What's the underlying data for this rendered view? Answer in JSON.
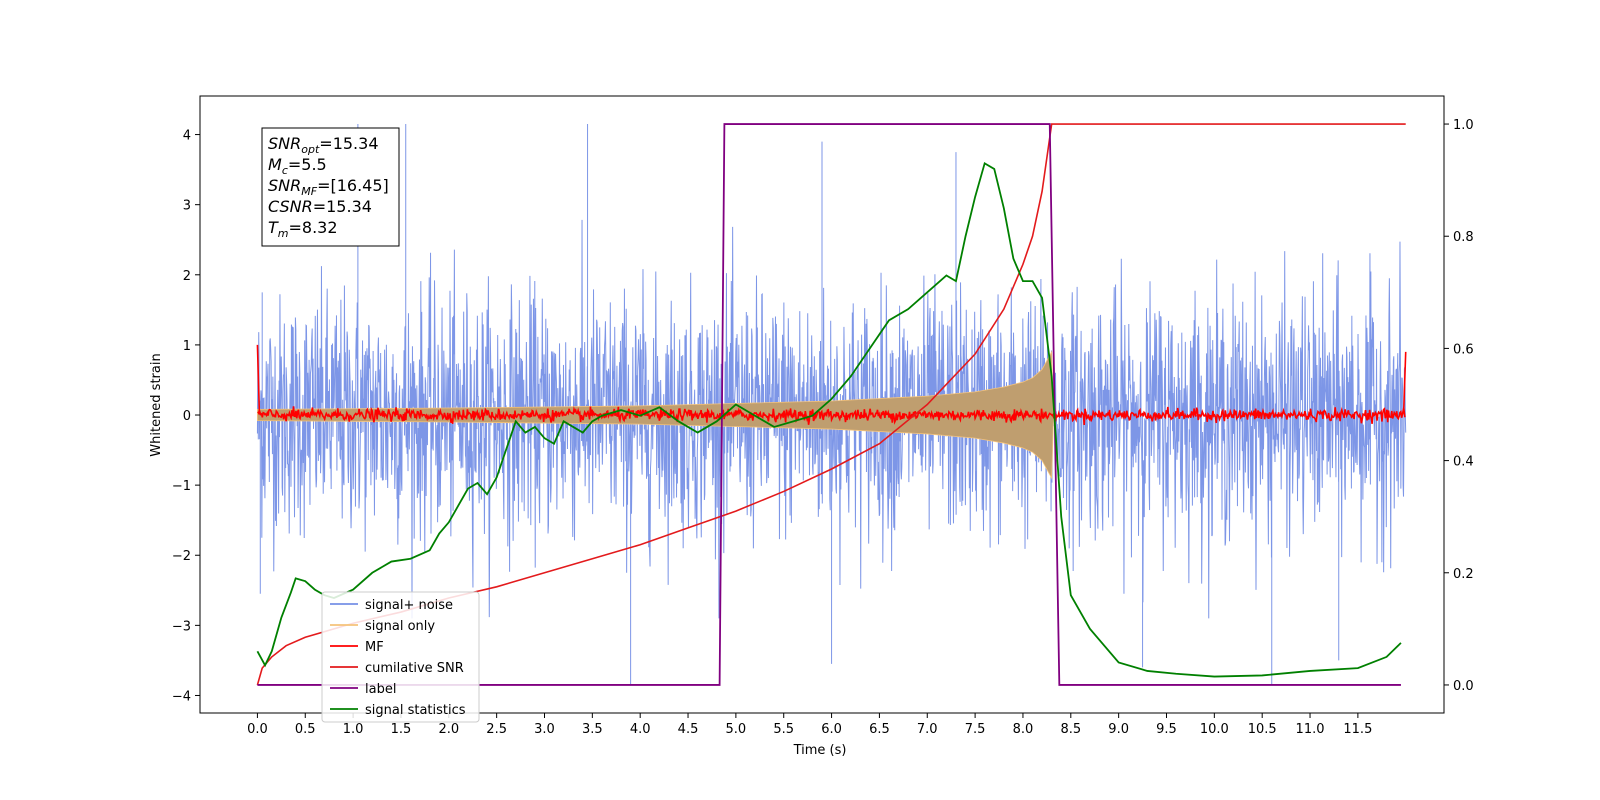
{
  "chart_data": {
    "type": "line",
    "xlabel": "Time (s)",
    "ylabel_left": "Whitened strain",
    "ylabel_right": "",
    "xlim": [
      -0.6,
      12.4
    ],
    "ylim_left": [
      -4.25,
      4.55
    ],
    "ylim_right": [
      -0.05,
      1.05
    ],
    "x_ticks": [
      0.0,
      0.5,
      1.0,
      1.5,
      2.0,
      2.5,
      3.0,
      3.5,
      4.0,
      4.5,
      5.0,
      5.5,
      6.0,
      6.5,
      7.0,
      7.5,
      8.0,
      8.5,
      9.0,
      9.5,
      10.0,
      10.5,
      11.0,
      11.5
    ],
    "x_tick_labels": [
      "0.0",
      "0.5",
      "1.0",
      "1.5",
      "2.0",
      "2.5",
      "3.0",
      "3.5",
      "4.0",
      "4.5",
      "5.0",
      "5.5",
      "6.0",
      "6.5",
      "7.0",
      "7.5",
      "8.0",
      "8.5",
      "9.0",
      "9.5",
      "10.0",
      "10.5",
      "11.0",
      "11.5"
    ],
    "y_left_ticks": [
      -4,
      -3,
      -2,
      -1,
      0,
      1,
      2,
      3,
      4
    ],
    "y_left_tick_labels": [
      "−4",
      "−3",
      "−2",
      "−1",
      "0",
      "1",
      "2",
      "3",
      "4"
    ],
    "y_right_ticks": [
      0.0,
      0.2,
      0.4,
      0.6,
      0.8,
      1.0
    ],
    "y_right_tick_labels": [
      "0.0",
      "0.2",
      "0.4",
      "0.6",
      "0.8",
      "1.0"
    ],
    "grid": false,
    "legend_position": "lower-left",
    "series": [
      {
        "name": "signal+ noise",
        "axis": "left",
        "color": "#7690e6",
        "description_kind": "whitened noise band",
        "x_range": [
          0.0,
          12.0
        ],
        "typical_upper": 1.8,
        "typical_lower": -1.8,
        "peaks_upper": [
          [
            0.05,
            1.75
          ],
          [
            1.05,
            4.15
          ],
          [
            1.55,
            4.15
          ],
          [
            3.45,
            4.15
          ],
          [
            5.9,
            3.9
          ],
          [
            7.3,
            3.75
          ]
        ],
        "peaks_lower": [
          [
            0.03,
            -2.55
          ],
          [
            3.9,
            -3.85
          ],
          [
            6.0,
            -3.55
          ],
          [
            9.25,
            -3.6
          ],
          [
            10.6,
            -3.85
          ],
          [
            11.3,
            -3.5
          ]
        ]
      },
      {
        "name": "signal only",
        "axis": "left",
        "color": "#f5c37a",
        "envelope": [
          [
            0.0,
            0.08
          ],
          [
            2.0,
            0.1
          ],
          [
            4.0,
            0.13
          ],
          [
            6.0,
            0.2
          ],
          [
            7.0,
            0.27
          ],
          [
            7.5,
            0.33
          ],
          [
            7.8,
            0.4
          ],
          [
            8.0,
            0.47
          ],
          [
            8.1,
            0.53
          ],
          [
            8.2,
            0.65
          ],
          [
            8.3,
            0.9
          ],
          [
            8.32,
            0.0
          ]
        ]
      },
      {
        "name": "MF",
        "axis": "left",
        "color": "#ff0000",
        "description_kind": "matched filter output",
        "x_range": [
          0.0,
          12.0
        ],
        "amplitude": 0.07,
        "edges": [
          [
            0.0,
            1.0
          ],
          [
            0.02,
            0.05
          ],
          [
            11.98,
            0.1
          ],
          [
            12.0,
            0.9
          ]
        ]
      },
      {
        "name": "cumilative SNR",
        "axis": "right",
        "color": "#e31a1c",
        "x": [
          0.0,
          0.05,
          0.15,
          0.3,
          0.5,
          1.0,
          1.5,
          2.0,
          2.5,
          3.0,
          3.5,
          4.0,
          4.5,
          5.0,
          5.5,
          6.0,
          6.5,
          7.0,
          7.5,
          7.8,
          8.0,
          8.1,
          8.2,
          8.3,
          12.0
        ],
        "y": [
          0.0,
          0.03,
          0.05,
          0.07,
          0.085,
          0.11,
          0.13,
          0.155,
          0.175,
          0.2,
          0.225,
          0.25,
          0.28,
          0.31,
          0.345,
          0.385,
          0.43,
          0.5,
          0.59,
          0.67,
          0.75,
          0.8,
          0.88,
          1.0,
          1.0
        ]
      },
      {
        "name": "label",
        "axis": "right",
        "color": "#800080",
        "x": [
          0.0,
          4.83,
          4.88,
          8.28,
          8.38,
          11.95
        ],
        "y": [
          0.0,
          0.0,
          1.0,
          1.0,
          0.0,
          0.0
        ]
      },
      {
        "name": "signal statistics",
        "axis": "right",
        "color": "#008000",
        "x": [
          0.0,
          0.08,
          0.15,
          0.25,
          0.35,
          0.4,
          0.5,
          0.6,
          0.7,
          0.8,
          1.0,
          1.2,
          1.4,
          1.6,
          1.8,
          1.9,
          2.0,
          2.1,
          2.2,
          2.3,
          2.4,
          2.5,
          2.6,
          2.7,
          2.8,
          2.9,
          3.0,
          3.1,
          3.2,
          3.3,
          3.4,
          3.5,
          3.6,
          3.8,
          4.0,
          4.2,
          4.4,
          4.6,
          4.8,
          5.0,
          5.2,
          5.4,
          5.6,
          5.8,
          6.0,
          6.2,
          6.4,
          6.6,
          6.8,
          7.0,
          7.2,
          7.3,
          7.4,
          7.5,
          7.6,
          7.7,
          7.8,
          7.9,
          8.0,
          8.1,
          8.2,
          8.3,
          8.4,
          8.5,
          8.7,
          9.0,
          9.3,
          9.6,
          10.0,
          10.5,
          11.0,
          11.5,
          11.8,
          11.95
        ],
        "y": [
          0.06,
          0.035,
          0.06,
          0.12,
          0.165,
          0.19,
          0.185,
          0.17,
          0.16,
          0.155,
          0.17,
          0.2,
          0.22,
          0.225,
          0.24,
          0.27,
          0.29,
          0.32,
          0.35,
          0.36,
          0.34,
          0.37,
          0.42,
          0.47,
          0.45,
          0.46,
          0.44,
          0.43,
          0.47,
          0.46,
          0.45,
          0.47,
          0.48,
          0.49,
          0.48,
          0.495,
          0.47,
          0.45,
          0.47,
          0.5,
          0.48,
          0.46,
          0.47,
          0.48,
          0.51,
          0.55,
          0.6,
          0.65,
          0.67,
          0.7,
          0.73,
          0.72,
          0.8,
          0.87,
          0.93,
          0.92,
          0.85,
          0.76,
          0.72,
          0.72,
          0.69,
          0.55,
          0.3,
          0.16,
          0.1,
          0.04,
          0.025,
          0.02,
          0.015,
          0.017,
          0.025,
          0.03,
          0.05,
          0.075
        ]
      }
    ],
    "annotation": {
      "lines": [
        {
          "main": "SNR",
          "sub": "opt",
          "value": "=15.34"
        },
        {
          "main": "M",
          "sub": "c",
          "value": "=5.5"
        },
        {
          "main": "SNR",
          "sub": "MF",
          "value": "=[16.45]"
        },
        {
          "main": "CSNR",
          "sub": "",
          "value": "=15.34"
        },
        {
          "main": "T",
          "sub": "m",
          "value": "=8.32"
        }
      ]
    }
  }
}
